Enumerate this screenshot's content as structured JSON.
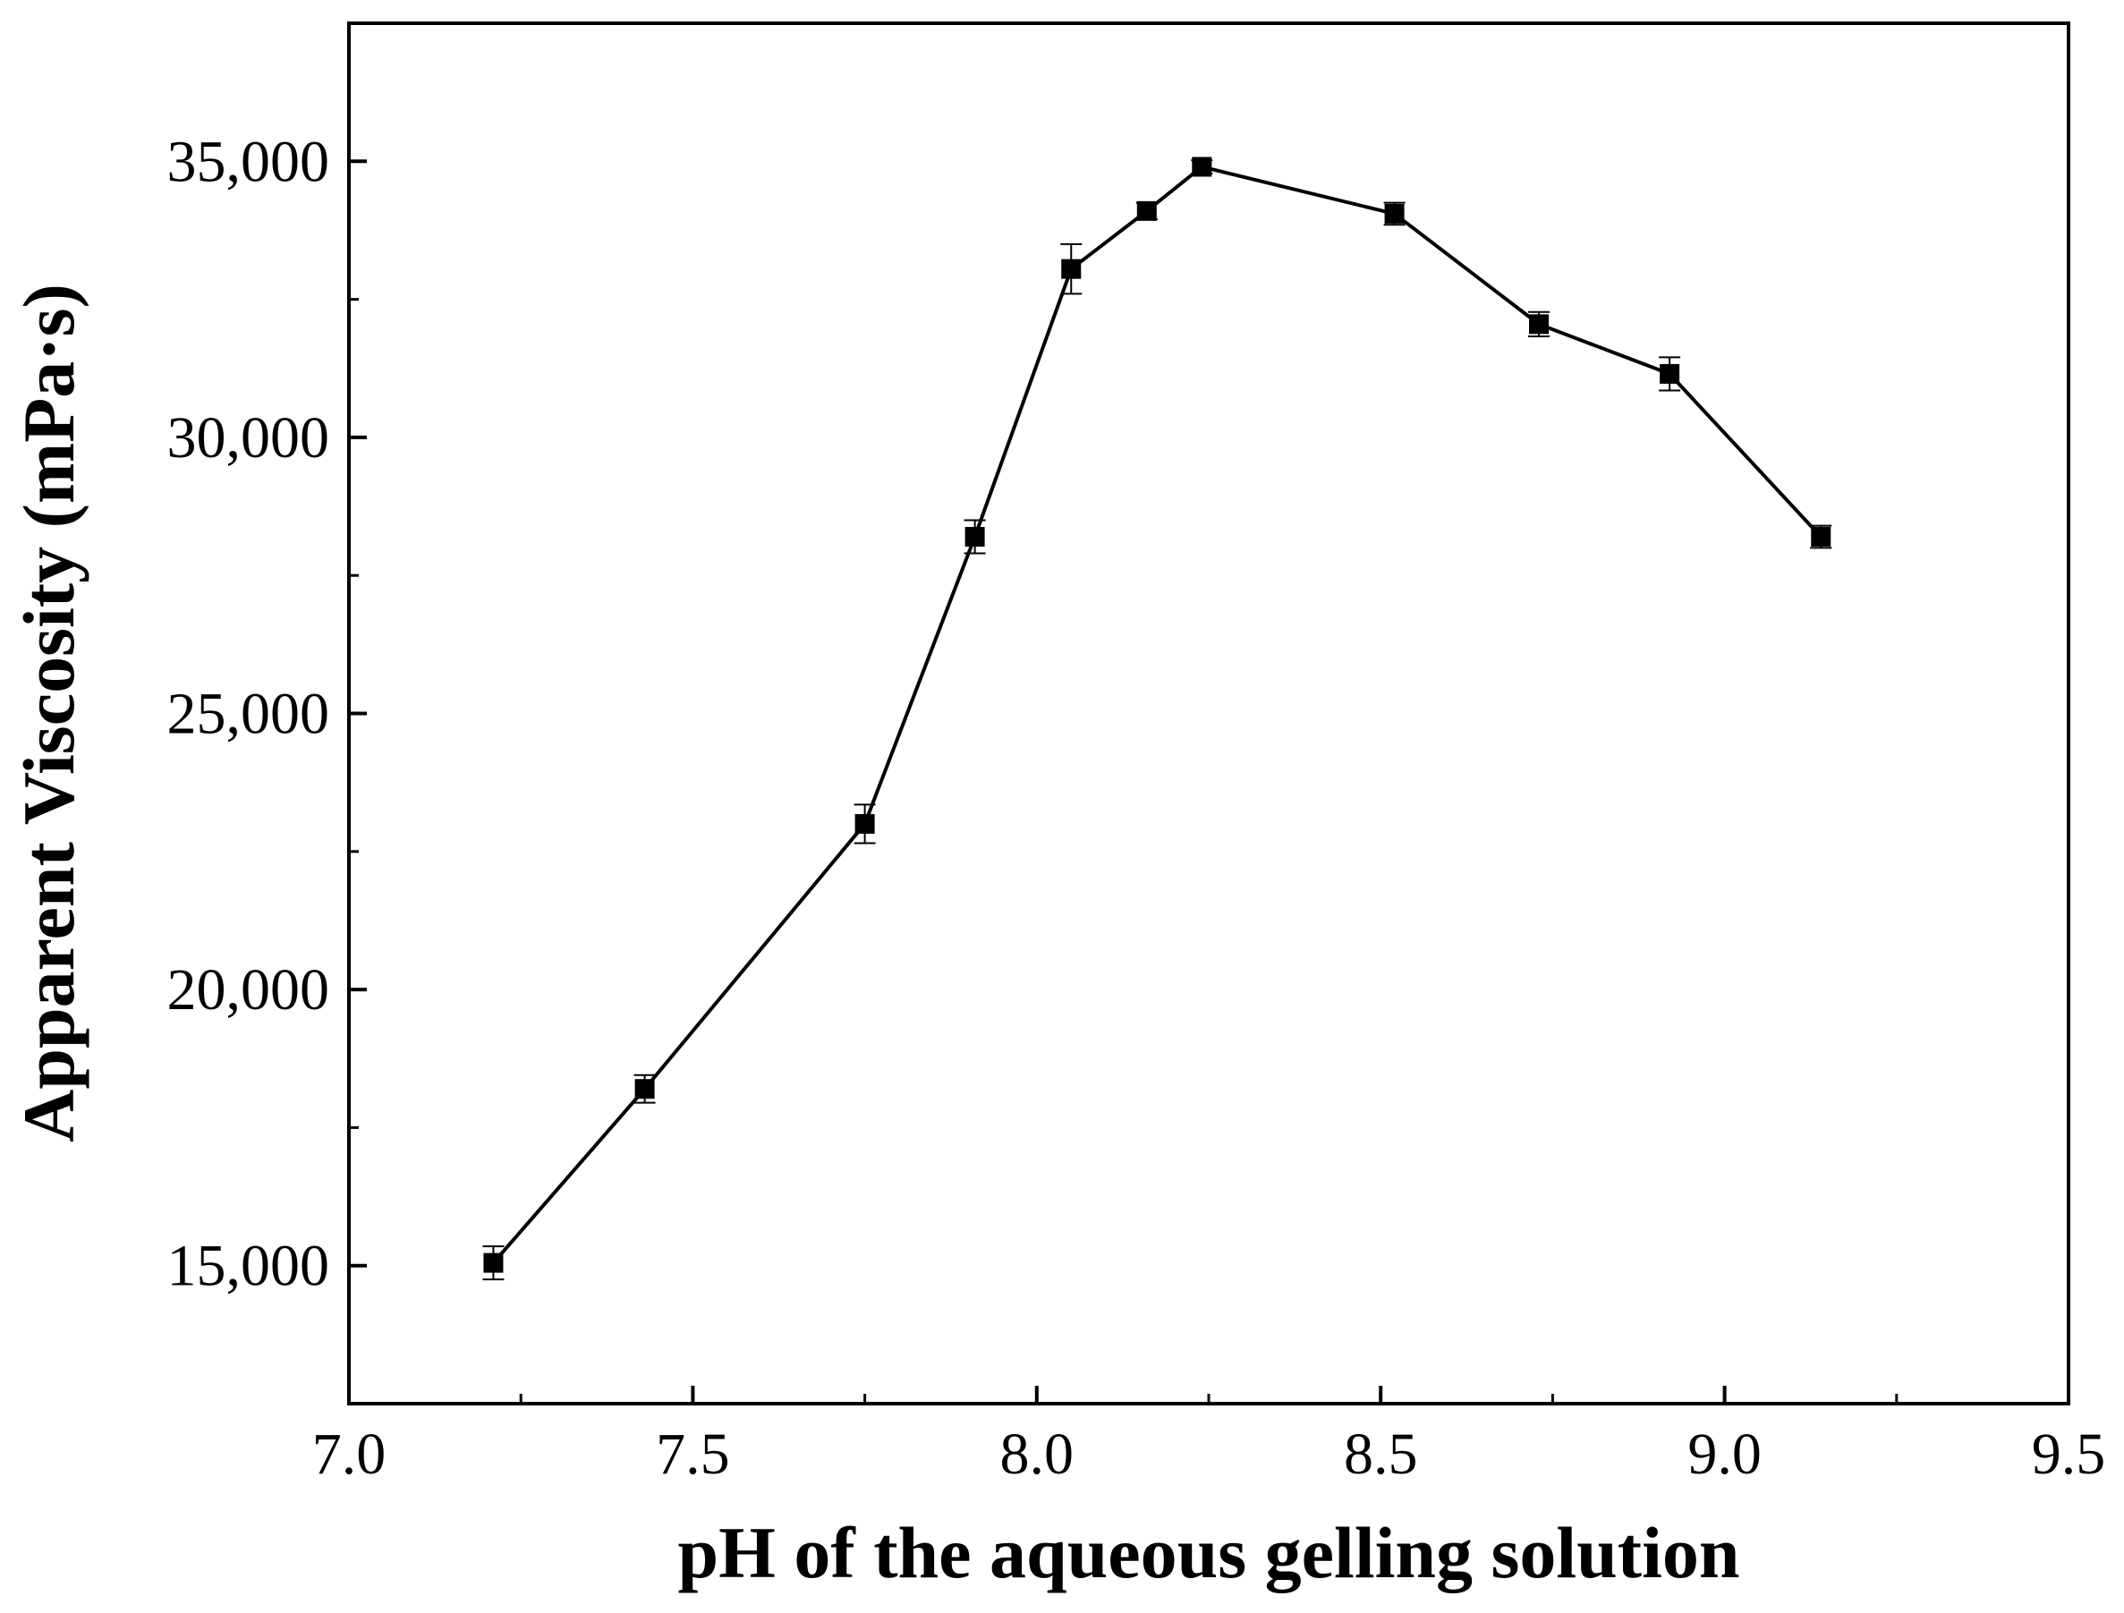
{
  "chart_data": {
    "type": "line",
    "title": "",
    "xlabel": "pH of the aqueous gelling solution",
    "ylabel": "Apparent Viscosity (mPa·s)",
    "xlim": [
      7.0,
      9.5
    ],
    "ylim": [
      12500,
      37500
    ],
    "x_ticks": [
      7.0,
      7.5,
      8.0,
      8.5,
      9.0,
      9.5
    ],
    "x_tick_labels": [
      "7.0",
      "7.5",
      "8.0",
      "8.5",
      "9.0",
      "9.5"
    ],
    "x_minor_ticks": [
      7.25,
      7.75,
      8.25,
      8.75,
      9.25
    ],
    "y_ticks": [
      15000,
      20000,
      25000,
      30000,
      35000
    ],
    "y_tick_labels": [
      "15,000",
      "20,000",
      "25,000",
      "30,000",
      "35,000"
    ],
    "y_minor_ticks": [
      17500,
      22500,
      27500,
      32500
    ],
    "grid": false,
    "legend": "none",
    "marker": "square",
    "line_color": "#000000",
    "series": [
      {
        "x": [
          7.21,
          7.43,
          7.75,
          7.91,
          8.05,
          8.16,
          8.24,
          8.52,
          8.73,
          8.92,
          9.14
        ],
        "y": [
          15050,
          18200,
          23000,
          28200,
          33050,
          34100,
          34900,
          34050,
          32050,
          31150,
          28200
        ],
        "error": [
          300,
          250,
          350,
          300,
          450,
          150,
          120,
          200,
          220,
          300,
          200
        ]
      }
    ]
  }
}
